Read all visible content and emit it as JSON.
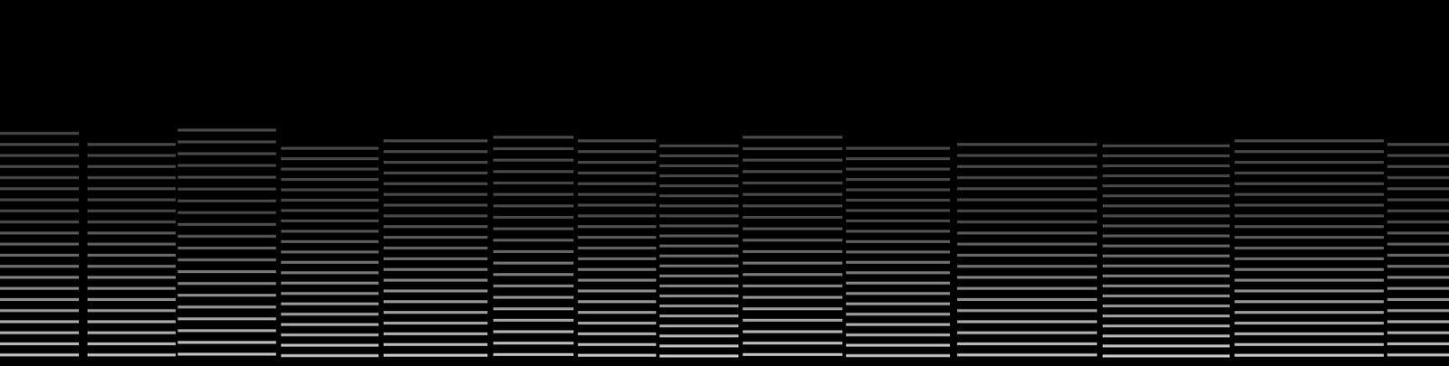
{
  "chart_data": {
    "type": "spectrogram",
    "xlim": [
      0,
      2021
    ],
    "ylim": [
      0,
      512
    ],
    "tick_labels": false,
    "grid": false,
    "color": "#c8c8c8",
    "segments": [
      {
        "start": 0,
        "end": 110,
        "lines": [
          15.5,
          31,
          46.5,
          62,
          77.5,
          93,
          108.5,
          124,
          139.5,
          155,
          170.5,
          186,
          201.5,
          217,
          232.5,
          248,
          263.5,
          279,
          294.5,
          310,
          325.5
        ]
      },
      {
        "start": 122,
        "end": 245,
        "lines": [
          15.5,
          31,
          46.5,
          62,
          77.5,
          93,
          108.5,
          124,
          139.5,
          155,
          170.5,
          186,
          201.5,
          217,
          232.5,
          248,
          263.5,
          279,
          294.5,
          310
        ]
      },
      {
        "start": 248,
        "end": 385,
        "lines": [
          16.5,
          33,
          49.5,
          66,
          82.5,
          99,
          115.5,
          132,
          148.5,
          165,
          181.5,
          198,
          214.5,
          231,
          247.5,
          264,
          280.5,
          297,
          313.5,
          330
        ]
      },
      {
        "start": 392,
        "end": 528,
        "lines": [
          14.5,
          29,
          43.5,
          58,
          72.5,
          87,
          101.5,
          116,
          130.5,
          145,
          159.5,
          174,
          188.5,
          203,
          217.5,
          232,
          246.5,
          261,
          275.5,
          290,
          304.5
        ]
      },
      {
        "start": 535,
        "end": 680,
        "lines": [
          15,
          30,
          45,
          60,
          75,
          90,
          105,
          120,
          135,
          150,
          165,
          180,
          195,
          210,
          225,
          240,
          255,
          270,
          285,
          300,
          315
        ]
      },
      {
        "start": 688,
        "end": 800,
        "lines": [
          16,
          32,
          48,
          64,
          80,
          96,
          112,
          128,
          144,
          160,
          176,
          192,
          208,
          224,
          240,
          256,
          272,
          288,
          304,
          320
        ]
      },
      {
        "start": 806,
        "end": 915,
        "lines": [
          15,
          30,
          45,
          60,
          75,
          90,
          105,
          120,
          135,
          150,
          165,
          180,
          195,
          210,
          225,
          240,
          255,
          270,
          285,
          300,
          315
        ]
      },
      {
        "start": 920,
        "end": 1030,
        "lines": [
          14,
          28,
          42,
          56,
          70,
          84,
          98,
          112,
          126,
          140,
          154,
          168,
          182,
          196,
          210,
          224,
          238,
          252,
          266,
          280,
          294,
          308
        ]
      },
      {
        "start": 1036,
        "end": 1175,
        "lines": [
          16,
          32,
          48,
          64,
          80,
          96,
          112,
          128,
          144,
          160,
          176,
          192,
          208,
          224,
          240,
          256,
          272,
          288,
          304,
          320
        ]
      },
      {
        "start": 1180,
        "end": 1325,
        "lines": [
          14.5,
          29,
          43.5,
          58,
          72.5,
          87,
          101.5,
          116,
          130.5,
          145,
          159.5,
          174,
          188.5,
          203,
          217.5,
          232,
          246.5,
          261,
          275.5,
          290,
          304.5
        ]
      },
      {
        "start": 1335,
        "end": 1530,
        "lines": [
          15.5,
          31,
          46.5,
          62,
          77.5,
          93,
          108.5,
          124,
          139.5,
          155,
          170.5,
          186,
          201.5,
          217,
          232.5,
          248,
          263.5,
          279,
          294.5,
          310
        ]
      },
      {
        "start": 1538,
        "end": 1715,
        "lines": [
          14,
          28,
          42,
          56,
          70,
          84,
          98,
          112,
          126,
          140,
          154,
          168,
          182,
          196,
          210,
          224,
          238,
          252,
          266,
          280,
          294,
          308
        ]
      },
      {
        "start": 1722,
        "end": 1930,
        "lines": [
          15,
          30,
          45,
          60,
          75,
          90,
          105,
          120,
          135,
          150,
          165,
          180,
          195,
          210,
          225,
          240,
          255,
          270,
          285,
          300,
          315
        ]
      },
      {
        "start": 1935,
        "end": 2021,
        "lines": [
          15.5,
          31,
          46.5,
          62,
          77.5,
          93,
          108.5,
          124,
          139.5,
          155,
          170.5,
          186,
          201.5,
          217,
          232.5,
          248,
          263.5,
          279,
          294.5,
          310
        ]
      }
    ]
  }
}
